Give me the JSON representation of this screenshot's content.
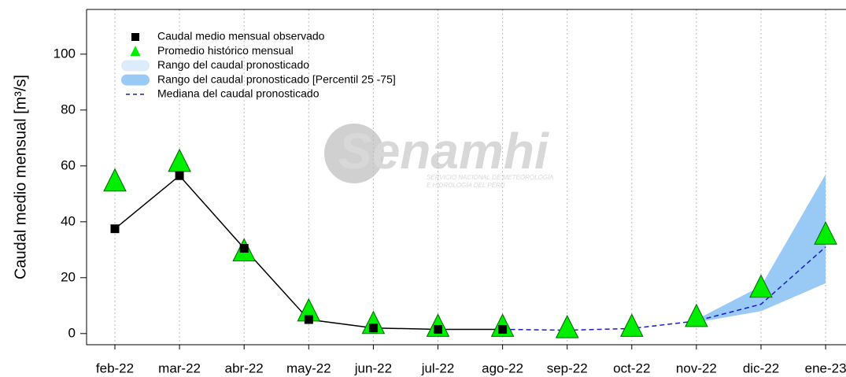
{
  "chart_data": {
    "type": "line",
    "y_label": "Caudal medio mensual  [m³/s]",
    "watermark": {
      "logo": "Senamhi",
      "line1": "SERVICIO NACIONAL DE METEOROLOGÍA",
      "line2": "E HIDROLOGÍA DEL PERÚ"
    },
    "categories": [
      "feb-22",
      "mar-22",
      "abr-22",
      "may-22",
      "jun-22",
      "jul-22",
      "ago-22",
      "sep-22",
      "oct-22",
      "nov-22",
      "dic-22",
      "ene-23"
    ],
    "series": [
      {
        "name": "Caudal medio mensual observado",
        "color": "#000000",
        "marker": "square",
        "values": [
          37.5,
          56.5,
          30.5,
          5,
          2,
          1.5,
          1.5,
          null,
          null,
          null,
          null,
          null
        ]
      },
      {
        "name": "Promedio histórico mensual",
        "color": "#00ee00",
        "marker": "triangle",
        "values": [
          54,
          61,
          29,
          7.5,
          3,
          2,
          2,
          1.5,
          2,
          5.5,
          16,
          35
        ]
      },
      {
        "name": "Rango del caudal pronosticado",
        "color": "#dcecfb",
        "marker": "band"
      },
      {
        "name": "Rango del caudal pronosticado [Percentil 25 -75]",
        "color": "#99c9f5",
        "marker": "band",
        "lower": [
          null,
          null,
          null,
          null,
          null,
          null,
          null,
          null,
          null,
          4,
          8,
          18
        ],
        "upper": [
          null,
          null,
          null,
          null,
          null,
          null,
          null,
          null,
          null,
          5,
          17,
          57
        ]
      },
      {
        "name": "Mediana del caudal pronosticado",
        "color": "#1a1acc",
        "marker": "dash",
        "values": [
          null,
          null,
          null,
          null,
          null,
          null,
          1.5,
          1.2,
          1.8,
          4.5,
          10.5,
          31
        ]
      }
    ],
    "ylim": [
      -4,
      116
    ],
    "yticks": [
      0,
      20,
      40,
      60,
      80,
      100
    ],
    "grid": true
  }
}
